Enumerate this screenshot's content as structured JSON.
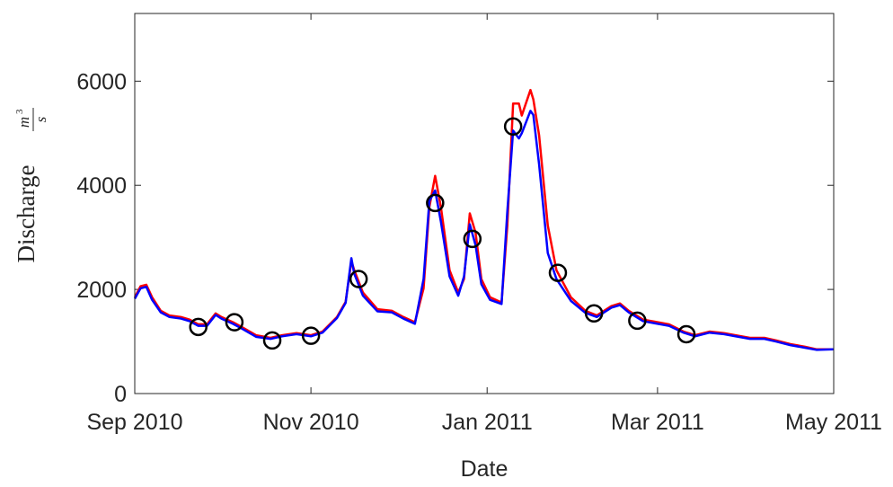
{
  "chart_data": {
    "type": "line",
    "x_label": "Date",
    "y_label": "Discharge",
    "y_unit_numerator": "m",
    "y_unit_exponent": "3",
    "y_unit_denominator": "s",
    "xlim": [
      0,
      242
    ],
    "xticks": [
      {
        "value": 0,
        "label": "Sep 2010"
      },
      {
        "value": 61,
        "label": "Nov 2010"
      },
      {
        "value": 122,
        "label": "Jan 2011"
      },
      {
        "value": 181,
        "label": "Mar 2011"
      },
      {
        "value": 242,
        "label": "May 2011"
      }
    ],
    "ylim": [
      0,
      7300
    ],
    "yticks": [
      0,
      2000,
      4000,
      6000
    ],
    "x": [
      0,
      2,
      4,
      6,
      9,
      12,
      16,
      19,
      22,
      25,
      28,
      30,
      34,
      37,
      42,
      47,
      51,
      56,
      61,
      65,
      70,
      73,
      75,
      76,
      79,
      84,
      89,
      93,
      97,
      100,
      102,
      104,
      106,
      109,
      112,
      114,
      116,
      118,
      120,
      123,
      127,
      129,
      131,
      133,
      134,
      137,
      138,
      140,
      143,
      146,
      151,
      156,
      160,
      165,
      168,
      171,
      176,
      180,
      185,
      190,
      194,
      199,
      204,
      208,
      213,
      218,
      222,
      227,
      232,
      236,
      242
    ],
    "series": [
      {
        "color": "#ff0000",
        "values": [
          1850,
          2060,
          2090,
          1850,
          1590,
          1500,
          1470,
          1420,
          1330,
          1330,
          1540,
          1470,
          1370,
          1280,
          1120,
          1070,
          1120,
          1160,
          1120,
          1190,
          1470,
          1760,
          2540,
          2370,
          1940,
          1620,
          1590,
          1470,
          1370,
          2020,
          3580,
          4180,
          3580,
          2370,
          1940,
          2200,
          3460,
          3090,
          2200,
          1850,
          1750,
          3230,
          5570,
          5570,
          5340,
          5830,
          5650,
          4960,
          3230,
          2370,
          1850,
          1590,
          1500,
          1680,
          1730,
          1590,
          1420,
          1380,
          1330,
          1190,
          1120,
          1190,
          1160,
          1120,
          1070,
          1070,
          1020,
          950,
          900,
          850,
          850
        ]
      },
      {
        "color": "#0000ff",
        "values": [
          1820,
          2020,
          2050,
          1800,
          1560,
          1470,
          1440,
          1390,
          1300,
          1300,
          1510,
          1440,
          1340,
          1250,
          1090,
          1050,
          1100,
          1140,
          1100,
          1170,
          1450,
          1740,
          2600,
          2300,
          1880,
          1580,
          1560,
          1440,
          1340,
          2200,
          3700,
          3900,
          3300,
          2250,
          1880,
          2250,
          3250,
          2850,
          2100,
          1800,
          1720,
          3500,
          5050,
          4900,
          5000,
          5430,
          5350,
          4400,
          2700,
          2200,
          1780,
          1550,
          1470,
          1650,
          1700,
          1560,
          1390,
          1350,
          1300,
          1170,
          1100,
          1170,
          1140,
          1100,
          1050,
          1050,
          1000,
          930,
          880,
          840,
          850
        ]
      }
    ],
    "markers": {
      "color": "#000000",
      "x": [
        22,
        34.5,
        47.6,
        61,
        77.5,
        104,
        116.9,
        131,
        146.5,
        159,
        174,
        191
      ],
      "values": [
        1280,
        1370,
        1020,
        1110,
        2200,
        3660,
        2970,
        5130,
        2320,
        1540,
        1400,
        1140
      ]
    }
  }
}
